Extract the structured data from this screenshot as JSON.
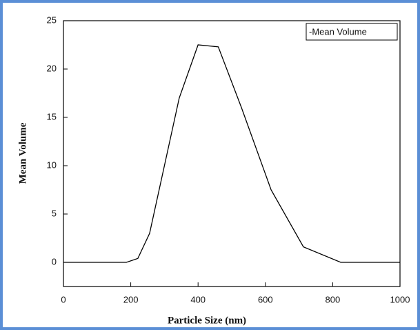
{
  "chart_data": {
    "type": "line",
    "x_label": "Particle Size (nm)",
    "y_label": "Mean Volume",
    "series": [
      {
        "name": "-Mean Volume",
        "color": "#000000",
        "x": [
          0,
          187,
          221,
          256,
          344,
          400,
          460,
          529,
          617,
          713,
          824,
          1000
        ],
        "values": [
          0,
          0,
          0.4,
          3,
          17,
          22.5,
          22.3,
          16,
          7.5,
          1.6,
          0,
          0
        ]
      }
    ],
    "xlim": [
      0,
      1000
    ],
    "xticks": [
      0,
      200,
      400,
      600,
      800,
      1000
    ],
    "ylim": [
      -2.5,
      25
    ],
    "yticks": [
      0,
      5,
      10,
      15,
      20,
      25
    ],
    "legend": "top-right"
  }
}
